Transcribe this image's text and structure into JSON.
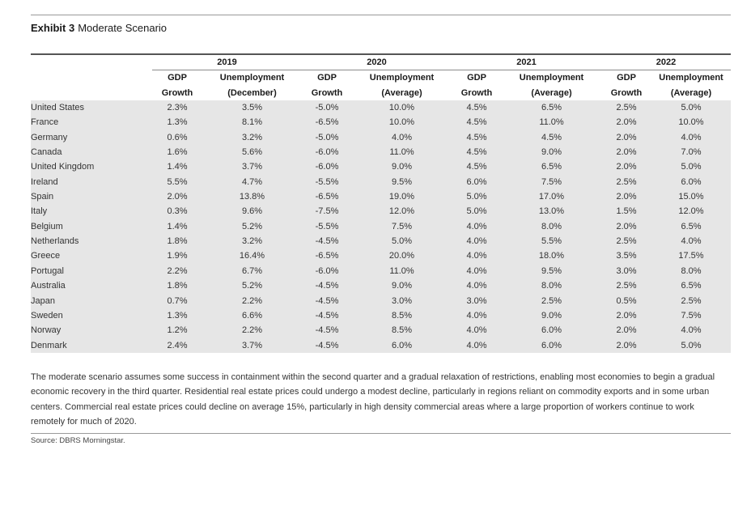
{
  "exhibit": {
    "label": "Exhibit 3",
    "title": "Moderate Scenario"
  },
  "years": [
    "2019",
    "2020",
    "2021",
    "2022"
  ],
  "column_headers": [
    [
      "GDP",
      "Unemployment"
    ],
    [
      "Growth",
      "(December)"
    ],
    [
      "GDP",
      "Unemployment"
    ],
    [
      "Growth",
      "(Average)"
    ],
    [
      "GDP",
      "Unemployment"
    ],
    [
      "Growth",
      "(Average)"
    ],
    [
      "GDP",
      "Unemployment"
    ],
    [
      "Growth",
      "(Average)"
    ]
  ],
  "header_line1": [
    "GDP",
    "Unemployment",
    "GDP",
    "Unemployment",
    "GDP",
    "Unemployment",
    "GDP",
    "Unemployment"
  ],
  "header_line2": [
    "Growth",
    "(December)",
    "Growth",
    "(Average)",
    "Growth",
    "(Average)",
    "Growth",
    "(Average)"
  ],
  "rows": [
    {
      "country": "United States",
      "values": [
        "2.3%",
        "3.5%",
        "-5.0%",
        "10.0%",
        "4.5%",
        "6.5%",
        "2.5%",
        "5.0%"
      ]
    },
    {
      "country": "France",
      "values": [
        "1.3%",
        "8.1%",
        "-6.5%",
        "10.0%",
        "4.5%",
        "11.0%",
        "2.0%",
        "10.0%"
      ]
    },
    {
      "country": "Germany",
      "values": [
        "0.6%",
        "3.2%",
        "-5.0%",
        "4.0%",
        "4.5%",
        "4.5%",
        "2.0%",
        "4.0%"
      ]
    },
    {
      "country": "Canada",
      "values": [
        "1.6%",
        "5.6%",
        "-6.0%",
        "11.0%",
        "4.5%",
        "9.0%",
        "2.0%",
        "7.0%"
      ]
    },
    {
      "country": "United Kingdom",
      "values": [
        "1.4%",
        "3.7%",
        "-6.0%",
        "9.0%",
        "4.5%",
        "6.5%",
        "2.0%",
        "5.0%"
      ]
    },
    {
      "country": "Ireland",
      "values": [
        "5.5%",
        "4.7%",
        "-5.5%",
        "9.5%",
        "6.0%",
        "7.5%",
        "2.5%",
        "6.0%"
      ]
    },
    {
      "country": "Spain",
      "values": [
        "2.0%",
        "13.8%",
        "-6.5%",
        "19.0%",
        "5.0%",
        "17.0%",
        "2.0%",
        "15.0%"
      ]
    },
    {
      "country": "Italy",
      "values": [
        "0.3%",
        "9.6%",
        "-7.5%",
        "12.0%",
        "5.0%",
        "13.0%",
        "1.5%",
        "12.0%"
      ]
    },
    {
      "country": "Belgium",
      "values": [
        "1.4%",
        "5.2%",
        "-5.5%",
        "7.5%",
        "4.0%",
        "8.0%",
        "2.0%",
        "6.5%"
      ]
    },
    {
      "country": "Netherlands",
      "values": [
        "1.8%",
        "3.2%",
        "-4.5%",
        "5.0%",
        "4.0%",
        "5.5%",
        "2.5%",
        "4.0%"
      ]
    },
    {
      "country": "Greece",
      "values": [
        "1.9%",
        "16.4%",
        "-6.5%",
        "20.0%",
        "4.0%",
        "18.0%",
        "3.5%",
        "17.5%"
      ]
    },
    {
      "country": "Portugal",
      "values": [
        "2.2%",
        "6.7%",
        "-6.0%",
        "11.0%",
        "4.0%",
        "9.5%",
        "3.0%",
        "8.0%"
      ]
    },
    {
      "country": "Australia",
      "values": [
        "1.8%",
        "5.2%",
        "-4.5%",
        "9.0%",
        "4.0%",
        "8.0%",
        "2.5%",
        "6.5%"
      ]
    },
    {
      "country": "Japan",
      "values": [
        "0.7%",
        "2.2%",
        "-4.5%",
        "3.0%",
        "3.0%",
        "2.5%",
        "0.5%",
        "2.5%"
      ]
    },
    {
      "country": "Sweden",
      "values": [
        "1.3%",
        "6.6%",
        "-4.5%",
        "8.5%",
        "4.0%",
        "9.0%",
        "2.0%",
        "7.5%"
      ]
    },
    {
      "country": "Norway",
      "values": [
        "1.2%",
        "2.2%",
        "-4.5%",
        "8.5%",
        "4.0%",
        "6.0%",
        "2.0%",
        "4.0%"
      ]
    },
    {
      "country": "Denmark",
      "values": [
        "2.4%",
        "3.7%",
        "-4.5%",
        "6.0%",
        "4.0%",
        "6.0%",
        "2.0%",
        "5.0%"
      ]
    }
  ],
  "footnote": "The moderate scenario assumes some success in containment within the second quarter and a gradual relaxation of restrictions, enabling most economies to begin a gradual economic recovery in the third quarter. Residential real estate prices could undergo a modest decline, particularly in regions reliant on commodity exports and in some urban centers. Commercial real estate prices could decline on average 15%, particularly in high density commercial areas where a large proportion of workers continue to work remotely for much of 2020.",
  "source": "Source: DBRS Morningstar."
}
